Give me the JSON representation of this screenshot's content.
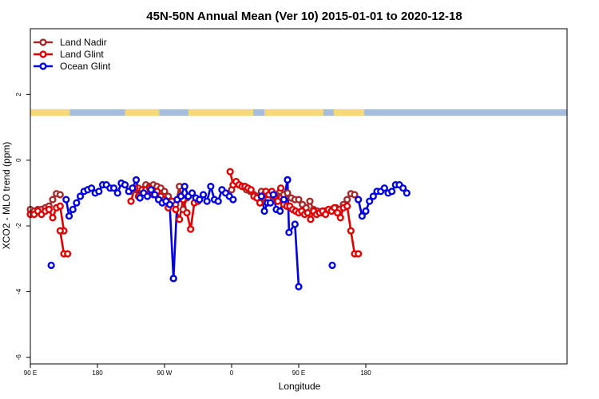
{
  "chart_data": {
    "type": "line",
    "title": "45N-50N Annual Mean (Ver 10)   2015-01-01 to 2020-12-18",
    "xlabel": "Longitude",
    "ylabel": "XCO2 - MLO trend (ppm)",
    "xlim": [
      90,
      810
    ],
    "ylim": [
      -6.2,
      4
    ],
    "x_ticks": [
      {
        "value": 90,
        "label": "90 E"
      },
      {
        "value": 180,
        "label": "180"
      },
      {
        "value": 270,
        "label": "90 W"
      },
      {
        "value": 360,
        "label": "0"
      },
      {
        "value": 450,
        "label": "90 E"
      },
      {
        "value": 540,
        "label": "180"
      }
    ],
    "y_ticks": [
      {
        "value": 2,
        "label": "2"
      },
      {
        "value": 0,
        "label": "0"
      },
      {
        "value": -2,
        "label": "-2"
      },
      {
        "value": -4,
        "label": "-4"
      },
      {
        "value": -6,
        "label": "-6"
      }
    ],
    "land_mask_band": {
      "y_range": [
        1.35,
        1.55
      ],
      "land_color": "#f5d77e",
      "ocean_color": "#a7bddd",
      "land_segments": [
        [
          90,
          143
        ],
        [
          217,
          263
        ],
        [
          302,
          389
        ],
        [
          404,
          483
        ],
        [
          497,
          538
        ]
      ]
    },
    "legend": {
      "position": "top-left",
      "entries": [
        "Land Nadir",
        "Land Glint",
        "Ocean Glint"
      ]
    },
    "series": [
      {
        "name": "Land Nadir",
        "color": "#a52a2a",
        "segments": [
          {
            "x": [
              90,
              95,
              100,
              105,
              110,
              115,
              120,
              125,
              130
            ],
            "y": [
              -1.5,
              -1.55,
              -1.5,
              -1.5,
              -1.45,
              -1.4,
              -1.2,
              -1.02,
              -1.05
            ]
          },
          {
            "x": [
              225,
              230,
              235,
              240,
              245,
              250,
              255,
              260,
              265,
              270,
              275,
              280,
              285,
              290,
              295,
              300
            ],
            "y": [
              -0.95,
              -0.9,
              -0.85,
              -0.9,
              -0.75,
              -0.8,
              -0.75,
              -0.8,
              -0.85,
              -0.95,
              -1.1,
              -1.3,
              -1.35,
              -0.8,
              -1.5,
              -1.15
            ]
          },
          {
            "x": [
              360,
              365,
              370,
              375,
              380,
              385,
              390,
              395,
              400,
              405,
              410,
              415,
              420,
              425,
              430,
              435,
              440,
              445,
              450,
              455,
              460,
              465,
              470,
              475,
              480,
              485,
              490,
              495,
              500,
              505,
              510,
              515,
              520,
              525
            ],
            "y": [
              -0.9,
              -0.7,
              -0.75,
              -0.8,
              -0.9,
              -0.95,
              -1.05,
              -1.1,
              -0.95,
              -1.0,
              -1.05,
              -1.1,
              -1.05,
              -0.95,
              -1.05,
              -1.0,
              -1.15,
              -1.2,
              -1.2,
              -1.35,
              -1.45,
              -1.25,
              -1.5,
              -1.55,
              -1.6,
              -1.55,
              -1.5,
              -1.5,
              -1.45,
              -1.5,
              -1.35,
              -1.2,
              -1.02,
              -1.05
            ]
          }
        ]
      },
      {
        "name": "Land Glint",
        "color": "#e00000",
        "segments": [
          {
            "x": [
              90,
              95,
              100,
              105,
              110,
              115,
              120,
              125,
              130,
              135
            ],
            "y": [
              -1.65,
              -1.65,
              -1.55,
              -1.65,
              -1.55,
              -1.5,
              -1.75,
              -1.45,
              -1.4,
              -2.15
            ]
          },
          {
            "x": [
              130,
              135,
              140
            ],
            "y": [
              -2.15,
              -2.85,
              -2.85
            ]
          },
          {
            "x": [
              225,
              230,
              235,
              240,
              245,
              250,
              255,
              260,
              265,
              270,
              275,
              280,
              285,
              290,
              295,
              300,
              305,
              310,
              315
            ],
            "y": [
              -1.25,
              -0.85,
              -1.1,
              -0.9,
              -0.9,
              -0.85,
              -1.05,
              -0.95,
              -1.1,
              -1.2,
              -1.45,
              -1.25,
              -1.5,
              -1.8,
              -1.2,
              -1.6,
              -2.1,
              -1.3,
              -1.25
            ]
          },
          {
            "x": [
              358,
              362,
              366,
              370,
              374,
              378,
              382,
              386,
              390,
              394,
              398,
              402,
              406,
              410,
              414,
              418,
              422,
              426,
              430,
              434,
              438,
              442,
              446,
              450,
              454,
              458,
              462,
              466,
              470,
              474,
              478,
              482,
              486,
              490,
              494,
              498,
              502,
              506,
              510,
              515,
              520,
              525,
              530
            ],
            "y": [
              -0.35,
              -0.75,
              -0.65,
              -0.75,
              -0.8,
              -0.8,
              -0.85,
              -0.9,
              -1.1,
              -1.15,
              -1.3,
              -1.15,
              -0.95,
              -1.05,
              -0.95,
              -1.1,
              -1.25,
              -0.85,
              -1.35,
              -1.4,
              -1.4,
              -1.5,
              -1.55,
              -1.6,
              -1.55,
              -1.65,
              -1.6,
              -1.8,
              -1.55,
              -1.65,
              -1.6,
              -1.55,
              -1.65,
              -1.5,
              -1.55,
              -1.45,
              -1.6,
              -1.75,
              -1.45,
              -1.4,
              -2.15,
              -2.85,
              -2.85
            ]
          }
        ]
      },
      {
        "name": "Ocean Glint",
        "color": "#0000e0",
        "segments": [
          {
            "x": [
              138,
              142,
              147,
              152,
              157,
              162,
              167,
              172,
              177,
              182,
              187,
              192,
              197,
              202,
              207,
              212,
              217,
              222,
              227,
              232,
              237,
              242,
              247,
              252,
              257,
              262,
              267,
              272,
              277,
              282
            ],
            "y": [
              -1.2,
              -1.7,
              -1.5,
              -1.3,
              -1.1,
              -0.95,
              -0.9,
              -0.85,
              -1.0,
              -0.95,
              -0.75,
              -0.75,
              -0.85,
              -0.85,
              -1.0,
              -0.7,
              -0.75,
              -0.95,
              -0.85,
              -0.6,
              -1.15,
              -1.0,
              -1.1,
              -0.9,
              -1.05,
              -1.2,
              -1.3,
              -1.25,
              -1.35,
              -3.6
            ]
          },
          {
            "x": [
              282,
              287,
              292,
              297,
              302,
              307,
              312,
              317,
              322,
              327,
              332,
              337,
              342,
              347,
              352,
              357,
              362
            ],
            "y": [
              -3.6,
              -1.2,
              -1.1,
              -0.8,
              -1.1,
              -1.0,
              -1.15,
              -1.2,
              -1.05,
              -1.25,
              -0.8,
              -1.2,
              -1.25,
              -0.9,
              -1.0,
              -1.1,
              -1.2
            ]
          },
          {
            "x": [
              400,
              404,
              408,
              412,
              416,
              420,
              425,
              430,
              435
            ],
            "y": [
              -1.1,
              -1.55,
              -1.3,
              -1.3,
              -1.05,
              -1.5,
              -1.55,
              -1.2,
              -0.6
            ]
          },
          {
            "x": [
              435,
              437,
              445,
              450
            ],
            "y": [
              -0.6,
              -2.2,
              -1.95,
              -3.85
            ]
          },
          {
            "x": [
              530,
              535,
              540,
              545,
              550,
              555,
              560,
              565,
              570,
              575,
              580,
              585,
              590,
              595
            ],
            "y": [
              -1.2,
              -1.7,
              -1.55,
              -1.25,
              -1.1,
              -0.95,
              -0.95,
              -0.85,
              -1.0,
              -0.95,
              -0.75,
              -0.75,
              -0.85,
              -1.0
            ]
          }
        ]
      }
    ],
    "outliers": [
      {
        "series": "Ocean Glint",
        "x": 118,
        "y": -3.2
      },
      {
        "series": "Ocean Glint",
        "x": 495,
        "y": -3.2
      }
    ]
  }
}
